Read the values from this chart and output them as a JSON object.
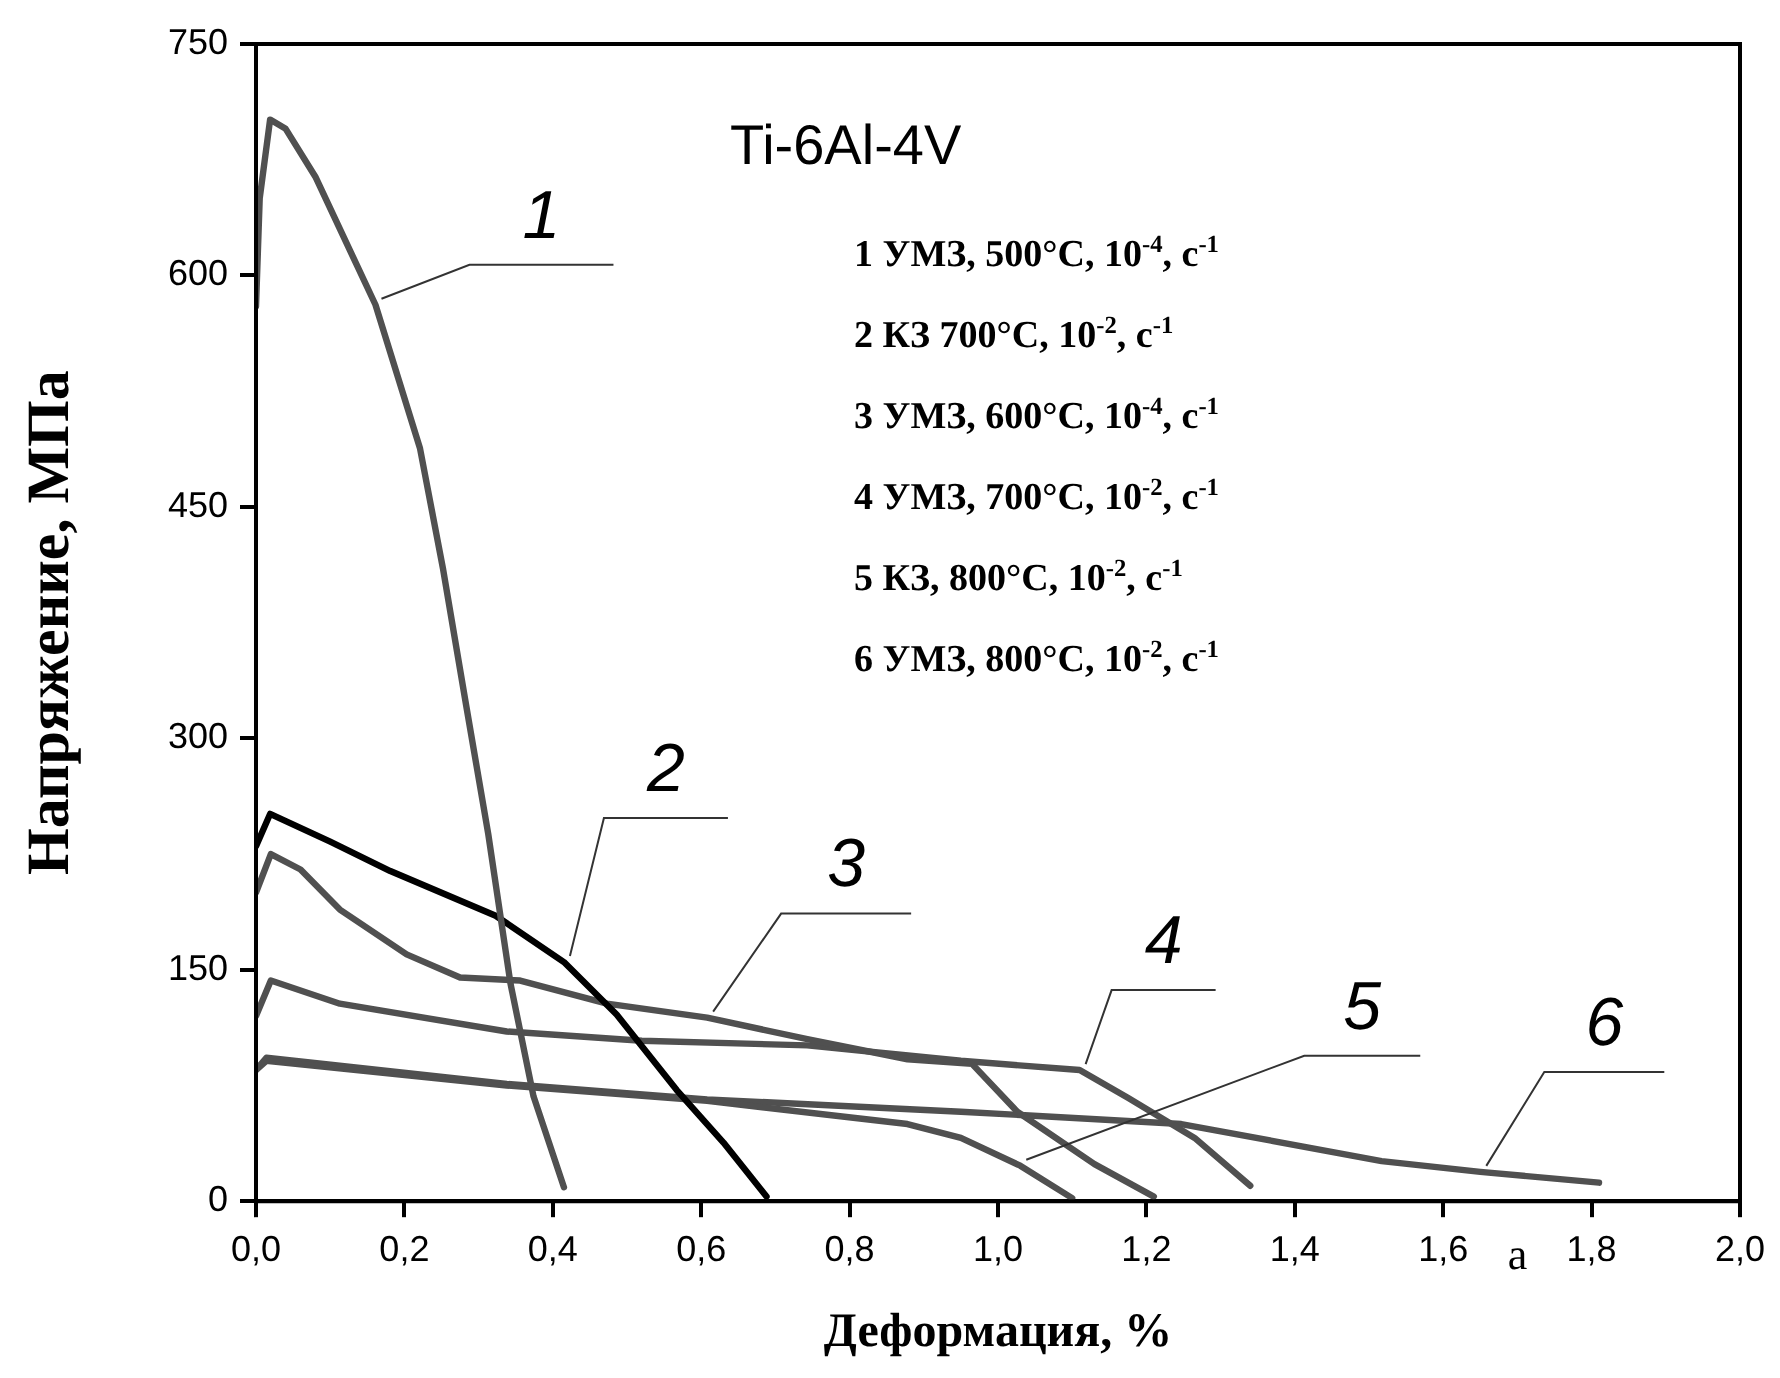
{
  "chart_data": {
    "type": "line",
    "title": "Ti-6Al-4V",
    "xlabel": "Деформация, %",
    "ylabel": "Напряжение, МПа",
    "xlim": [
      0,
      2
    ],
    "ylim": [
      0,
      750
    ],
    "xticks": [
      {
        "value": 0,
        "label": "0,0"
      },
      {
        "value": 0.2,
        "label": "0,2"
      },
      {
        "value": 0.4,
        "label": "0,4"
      },
      {
        "value": 0.6,
        "label": "0,6"
      },
      {
        "value": 0.8,
        "label": "0,8"
      },
      {
        "value": 1.0,
        "label": "1,0"
      },
      {
        "value": 1.2,
        "label": "1,2"
      },
      {
        "value": 1.4,
        "label": "1,4"
      },
      {
        "value": 1.6,
        "label": "1,6"
      },
      {
        "value": 1.8,
        "label": "1,8"
      },
      {
        "value": 2.0,
        "label": "2,0"
      }
    ],
    "yticks": [
      0,
      150,
      300,
      450,
      600,
      750
    ],
    "grid": false,
    "legend": false,
    "marker": "none",
    "line_style": "solid",
    "series": [
      {
        "name": "1",
        "color": "#505050",
        "x": [
          0,
          0.005,
          0.019,
          0.04,
          0.08,
          0.161,
          0.221,
          0.252,
          0.283,
          0.313,
          0.343,
          0.374,
          0.415
        ],
        "values": [
          580,
          650,
          701,
          695,
          664,
          581,
          488,
          410,
          322,
          238,
          141,
          68,
          9
        ]
      },
      {
        "name": "2",
        "color": "#000000",
        "x": [
          0,
          0.019,
          0.1,
          0.181,
          0.323,
          0.415,
          0.486,
          0.567,
          0.63,
          0.688
        ],
        "values": [
          230,
          251,
          233,
          214,
          185,
          155,
          121,
          72,
          38,
          3
        ]
      },
      {
        "name": "3",
        "color": "#505050",
        "x": [
          0,
          0.02,
          0.06,
          0.113,
          0.203,
          0.275,
          0.356,
          0.473,
          0.608,
          0.743,
          0.878,
          0.965,
          1.026,
          1.13,
          1.21
        ],
        "values": [
          200,
          225,
          215,
          189,
          160,
          145,
          143,
          128,
          119,
          105,
          92,
          89,
          58,
          24,
          3
        ]
      },
      {
        "name": "4",
        "color": "#505050",
        "x": [
          0,
          0.02,
          0.113,
          0.338,
          0.52,
          0.743,
          0.95,
          1.11,
          1.175,
          1.265,
          1.34
        ],
        "values": [
          120,
          143,
          128,
          110,
          104,
          101,
          91,
          85,
          67,
          41,
          10
        ]
      },
      {
        "name": "5",
        "color": "#505050",
        "x": [
          0,
          0.014,
          0.338,
          0.608,
          0.878,
          0.95,
          1.03,
          1.1
        ],
        "values": [
          85,
          91,
          75,
          65,
          50,
          41,
          23,
          2
        ]
      },
      {
        "name": "6",
        "color": "#505050",
        "x": [
          0,
          0.014,
          0.338,
          0.608,
          0.95,
          1.247,
          1.517,
          1.65,
          1.81
        ],
        "values": [
          85,
          93,
          76,
          66,
          58,
          50,
          26,
          19,
          12
        ]
      }
    ],
    "annotations": [
      "1 УМЗ, 500°C, 10$^{-4}$, с$^{-1}$",
      "2 КЗ 700°C, 10$^{-2}$, с$^{-1}$",
      "3 УМЗ, 600°C, 10$^{-4}$, с$^{-1}$",
      "4 УМЗ, 700°C, 10$^{-2}$, с$^{-1}$",
      "5 КЗ, 800°C, 10$^{-2}$, с$^{-1}$",
      "6 УМЗ, 800°C, 10$^{-2}$, с$^{-1}$",
      "a"
    ]
  }
}
